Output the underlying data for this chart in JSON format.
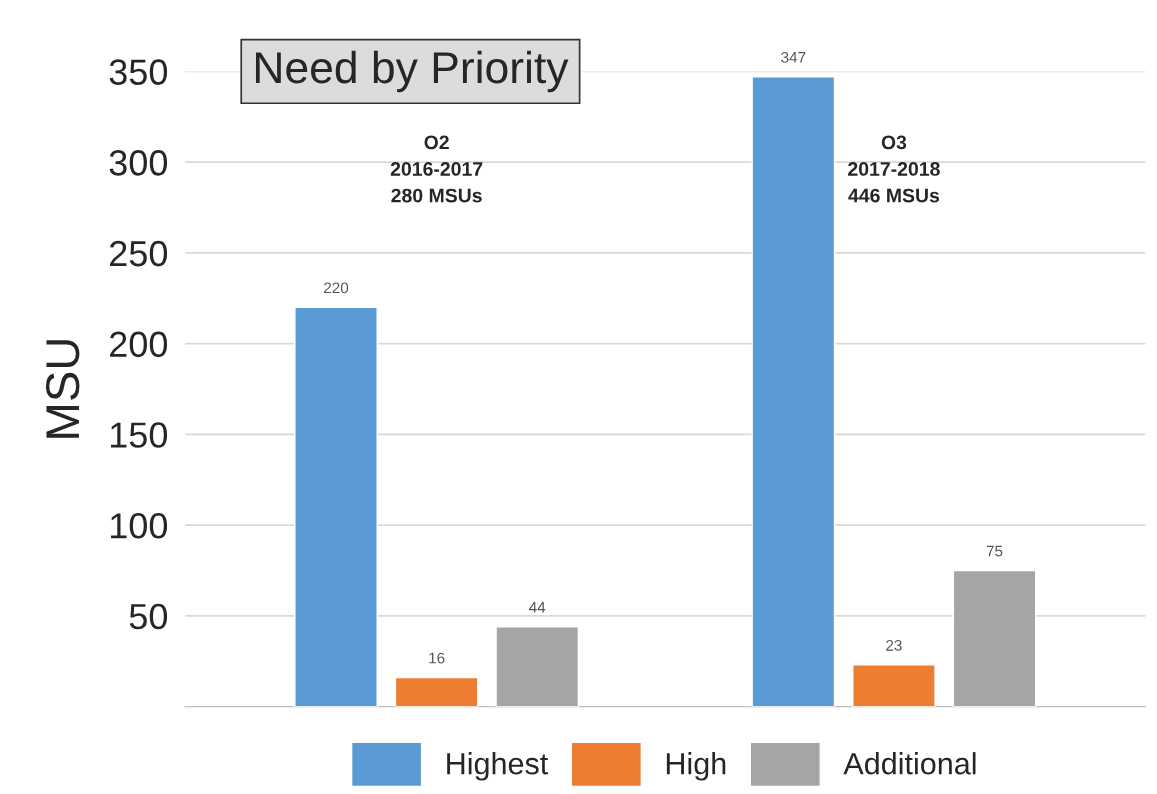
{
  "chart_data": {
    "type": "bar",
    "title": "Need by Priority",
    "ylabel": "MSU",
    "categories": [
      null,
      null
    ],
    "series": [
      {
        "name": "Highest",
        "color": "#5b9bd5",
        "values": [
          220,
          347
        ]
      },
      {
        "name": "High",
        "color": "#ed7d31",
        "values": [
          16,
          23
        ]
      },
      {
        "name": "Additional",
        "color": "#a5a5a5",
        "values": [
          44,
          75
        ]
      }
    ],
    "annotations": [
      "O2\n2016-2017\n280 MSUs",
      "O3\n2017-2018\n446 MSUs"
    ],
    "ylim": [
      0,
      350
    ],
    "yticks": [
      50,
      100,
      150,
      200,
      250,
      300,
      350
    ],
    "grid": "y",
    "legend": "bottom",
    "data_labels": true
  }
}
